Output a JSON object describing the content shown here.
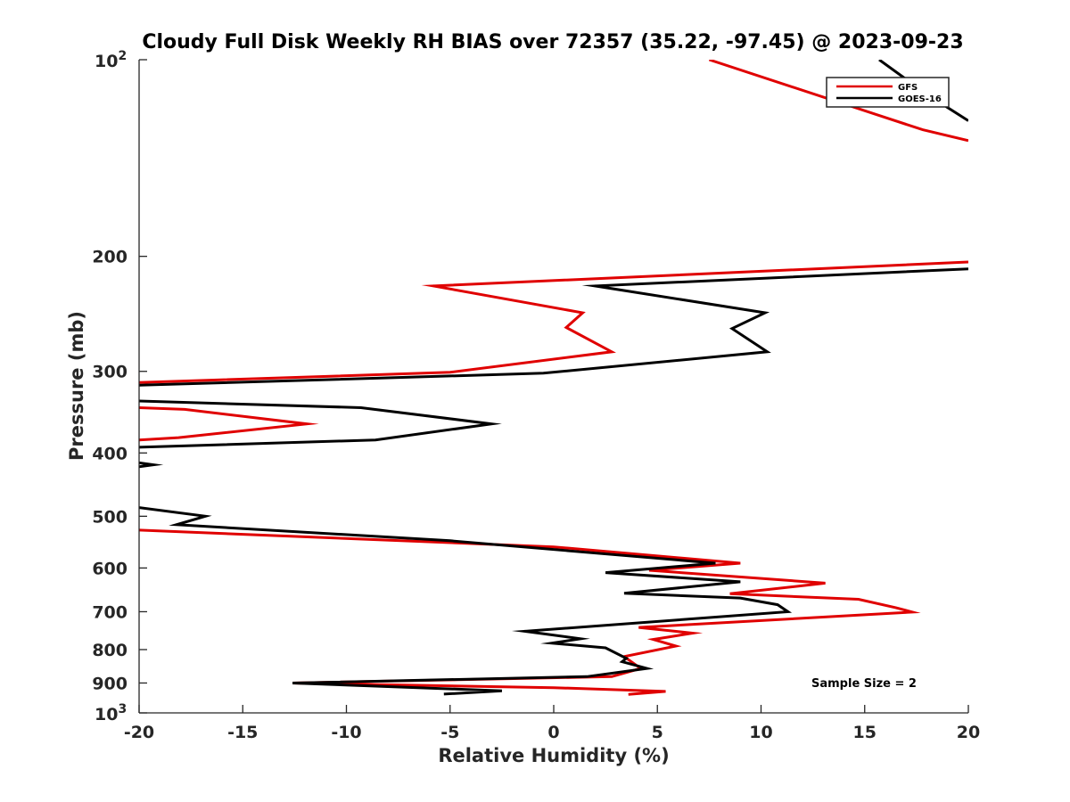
{
  "chart_data": {
    "type": "line",
    "title": "Cloudy Full Disk Weekly RH BIAS over 72357 (35.22, -97.45) @ 2023-09-23",
    "xlabel": "Relative Humidity (%)",
    "ylabel": "Pressure (mb)",
    "xlim": [
      -20,
      20
    ],
    "ylim": [
      100,
      1000
    ],
    "yscale": "log",
    "y_reversed": true,
    "grid": false,
    "legend_position": "top-right",
    "x_ticks": [
      -20,
      -15,
      -10,
      -5,
      0,
      5,
      10,
      15,
      20
    ],
    "x_tick_labels": [
      "-20",
      "-15",
      "-10",
      "-5",
      "0",
      "5",
      "10",
      "15",
      "20"
    ],
    "y_ticks": [
      {
        "value": 100,
        "base": "10",
        "exp": "2"
      },
      {
        "value": 200,
        "label": "200"
      },
      {
        "value": 300,
        "label": "300"
      },
      {
        "value": 400,
        "label": "400"
      },
      {
        "value": 500,
        "label": "500"
      },
      {
        "value": 600,
        "label": "600"
      },
      {
        "value": 700,
        "label": "700"
      },
      {
        "value": 800,
        "label": "800"
      },
      {
        "value": 900,
        "label": "900"
      },
      {
        "value": 1000,
        "base": "10",
        "exp": "3"
      }
    ],
    "annotation": "Sample Size = 2",
    "series": [
      {
        "name": "GFS",
        "color": "#e00000",
        "segments": [
          [
            [
              7.5,
              100
            ],
            [
              17.8,
              128
            ],
            [
              20,
              133
            ]
          ],
          [
            [
              20,
              204
            ],
            [
              -5.8,
              222
            ],
            [
              1.4,
              244
            ],
            [
              0.6,
              257
            ],
            [
              2.8,
              280
            ],
            [
              -5.0,
              301
            ],
            [
              -20,
              312
            ]
          ],
          [
            [
              -20,
              341
            ],
            [
              -17.8,
              343
            ],
            [
              -11.9,
              361
            ],
            [
              -18.1,
              379
            ],
            [
              -20,
              382
            ]
          ],
          [
            [
              -20,
              525
            ],
            [
              0,
              557
            ],
            [
              9.0,
              590
            ],
            [
              4.6,
              605
            ],
            [
              13.1,
              633
            ],
            [
              8.5,
              657
            ],
            [
              14.7,
              670
            ],
            [
              16.5,
              690
            ],
            [
              17.3,
              701
            ],
            [
              4.1,
              740
            ],
            [
              6.7,
              755
            ],
            [
              4.8,
              772
            ],
            [
              5.9,
              790
            ],
            [
              3.4,
              820
            ],
            [
              4.2,
              855
            ],
            [
              2.8,
              880
            ],
            [
              -12.6,
              900
            ],
            [
              0,
              915
            ],
            [
              5.4,
              927
            ],
            [
              3.6,
              937
            ]
          ]
        ]
      },
      {
        "name": "GOES-16",
        "color": "#000000",
        "segments": [
          [
            [
              15.7,
              100
            ],
            [
              18.0,
              113
            ],
            [
              20,
              124
            ]
          ],
          [
            [
              20,
              209
            ],
            [
              2.0,
              222
            ],
            [
              10.2,
              244
            ],
            [
              8.6,
              258
            ],
            [
              10.3,
              280
            ],
            [
              -0.5,
              302
            ],
            [
              -20,
              315
            ]
          ],
          [
            [
              -20,
              333
            ],
            [
              -9.3,
              341
            ],
            [
              -3.0,
              361
            ],
            [
              -8.6,
              382
            ],
            [
              -20,
              392
            ]
          ],
          [
            [
              -20,
              414
            ],
            [
              -19.3,
              417
            ],
            [
              -20,
              420
            ]
          ],
          [
            [
              -20,
              485
            ],
            [
              -16.8,
              500
            ],
            [
              -18.2,
              515
            ],
            [
              -5,
              545
            ],
            [
              7.8,
              590
            ],
            [
              2.5,
              610
            ],
            [
              9.0,
              630
            ],
            [
              3.4,
              656
            ],
            [
              9.0,
              667
            ],
            [
              10.8,
              683
            ],
            [
              11.3,
              700
            ],
            [
              -1.4,
              750
            ],
            [
              1.3,
              770
            ],
            [
              -0.1,
              782
            ],
            [
              2.5,
              795
            ],
            [
              3.5,
              825
            ],
            [
              3.3,
              835
            ],
            [
              4.5,
              855
            ],
            [
              1.6,
              880
            ],
            [
              -12.6,
              900
            ],
            [
              -2.5,
              925
            ],
            [
              -5.3,
              936
            ]
          ]
        ]
      }
    ]
  }
}
